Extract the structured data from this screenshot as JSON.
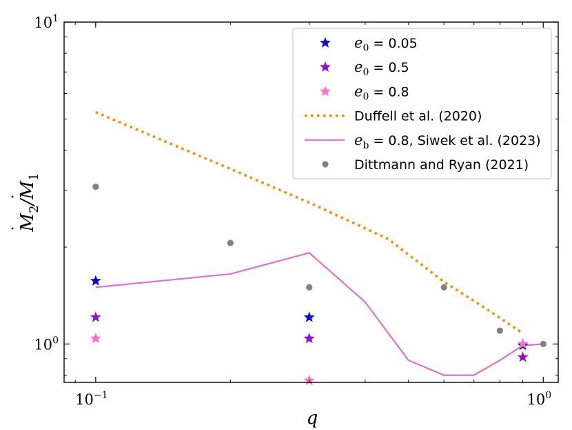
{
  "chart_data": {
    "type": "scatter",
    "xlabel": "q",
    "ylabel": "Ṁ2 / Ṁ1",
    "xscale": "log",
    "yscale": "log",
    "xlim": [
      0.085,
      1.08
    ],
    "ylim": [
      0.76,
      10
    ],
    "xticks": [
      {
        "value": 0.1,
        "base": "10",
        "exp": "−1"
      },
      {
        "value": 1.0,
        "base": "10",
        "exp": "0"
      }
    ],
    "yticks": [
      {
        "value": 1.0,
        "base": "10",
        "exp": "0"
      },
      {
        "value": 10.0,
        "base": "10",
        "exp": "1"
      }
    ],
    "legend_position": "top-right",
    "series": [
      {
        "name": "e0 = 0.05",
        "label_main": "e",
        "label_sub": "0",
        "label_rest": " = 0.05",
        "kind": "star",
        "color": "#0a0ad0",
        "x": [
          0.1,
          0.3,
          0.9
        ],
        "y": [
          1.57,
          1.21,
          0.99
        ]
      },
      {
        "name": "e0 = 0.5",
        "label_main": "e",
        "label_sub": "0",
        "label_rest": " = 0.5",
        "kind": "star",
        "color": "#8a12d6",
        "x": [
          0.1,
          0.3,
          0.9
        ],
        "y": [
          1.21,
          1.04,
          0.91
        ]
      },
      {
        "name": "e0 = 0.8",
        "label_main": "e",
        "label_sub": "0",
        "label_rest": " = 0.8",
        "kind": "star",
        "color": "#ff6ec7",
        "x": [
          0.1,
          0.3,
          0.9
        ],
        "y": [
          1.04,
          0.77,
          1.0
        ]
      },
      {
        "name": "Duffell et al. (2020)",
        "label_main": "Duffell et al. (2020)",
        "kind": "dotted-line",
        "color": "#ff8c00",
        "x": [
          0.1,
          0.2,
          0.3,
          0.45,
          0.6,
          0.75,
          0.9
        ],
        "y": [
          5.25,
          3.5,
          2.75,
          2.12,
          1.56,
          1.28,
          1.08
        ]
      },
      {
        "name": "eb = 0.8, Siwek et al. (2023)",
        "label_main": "e",
        "label_sub": "b",
        "label_rest": " = 0.8, Siwek et al. (2023)",
        "kind": "line",
        "color": "#e06fcf",
        "x": [
          0.1,
          0.2,
          0.3,
          0.4,
          0.5,
          0.6,
          0.7,
          0.8,
          0.9,
          1.0
        ],
        "y": [
          1.5,
          1.65,
          1.92,
          1.35,
          0.89,
          0.8,
          0.8,
          0.89,
          0.99,
          1.0
        ]
      },
      {
        "name": "Dittmann and Ryan (2021)",
        "label_main": "Dittmann and Ryan (2021)",
        "kind": "dot",
        "color": "#808080",
        "x": [
          0.1,
          0.2,
          0.3,
          0.6,
          0.8,
          1.0
        ],
        "y": [
          3.08,
          2.06,
          1.5,
          1.5,
          1.1,
          1.0
        ]
      }
    ]
  }
}
